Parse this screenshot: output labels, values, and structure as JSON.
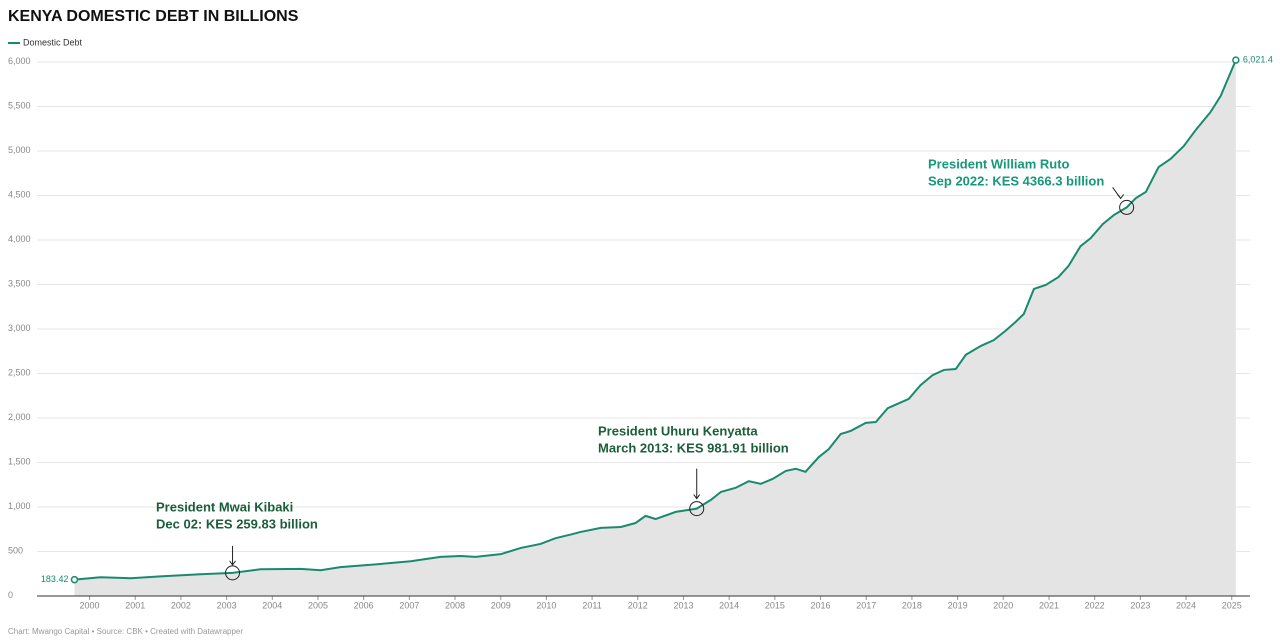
{
  "chart_data": {
    "type": "area",
    "title": "KENYA DOMESTIC DEBT IN BILLIONS",
    "source": "Chart: Mwango Capital • Source: CBK • Created with Datawrapper",
    "legend": "top-left",
    "grid": true,
    "series": [
      {
        "name": "Domestic Debt",
        "color": "#1a8a6e",
        "x": [
          1999.67,
          2000.24,
          2000.9,
          2001.55,
          2002.43,
          2003.13,
          2003.74,
          2004.62,
          2005.06,
          2005.49,
          2006.37,
          2007.03,
          2007.68,
          2008.12,
          2008.45,
          2009.0,
          2009.44,
          2009.87,
          2010.2,
          2010.53,
          2010.75,
          2011.19,
          2011.63,
          2011.95,
          2012.17,
          2012.39,
          2012.83,
          2013.29,
          2013.6,
          2013.82,
          2014.14,
          2014.43,
          2014.69,
          2014.95,
          2015.24,
          2015.46,
          2015.67,
          2015.96,
          2016.18,
          2016.44,
          2016.66,
          2016.99,
          2017.21,
          2017.47,
          2017.93,
          2018.19,
          2018.45,
          2018.7,
          2018.96,
          2019.18,
          2019.51,
          2019.79,
          2020.05,
          2020.27,
          2020.45,
          2020.67,
          2020.93,
          2021.21,
          2021.43,
          2021.69,
          2021.91,
          2022.18,
          2022.42,
          2022.7,
          2022.9,
          2023.12,
          2023.4,
          2023.66,
          2023.95,
          2024.21,
          2024.54,
          2024.76,
          2025.09
        ],
        "values": [
          183.42,
          210,
          200,
          220,
          245,
          259.83,
          300,
          305,
          290,
          325,
          360,
          390,
          440,
          450,
          440,
          470,
          540,
          585,
          650,
          690,
          720,
          765,
          775,
          820,
          900,
          865,
          945,
          981.91,
          1080,
          1170,
          1215,
          1290,
          1260,
          1315,
          1405,
          1430,
          1395,
          1560,
          1650,
          1820,
          1855,
          1945,
          1955,
          2110,
          2215,
          2370,
          2480,
          2540,
          2550,
          2710,
          2810,
          2875,
          2980,
          3080,
          3170,
          3450,
          3495,
          3585,
          3710,
          3930,
          4020,
          4180,
          4280,
          4366.3,
          4470,
          4540,
          4820,
          4910,
          5055,
          5235,
          5440,
          5620,
          6021.4
        ],
        "value_labels": [
          "183.42",
          null,
          null,
          null,
          null,
          null,
          null,
          null,
          null,
          null,
          null,
          null,
          null,
          null,
          null,
          null,
          null,
          null,
          null,
          null,
          null,
          null,
          null,
          null,
          null,
          null,
          null,
          null,
          null,
          null,
          null,
          null,
          null,
          null,
          null,
          null,
          null,
          null,
          null,
          null,
          null,
          null,
          null,
          null,
          null,
          null,
          null,
          null,
          null,
          null,
          null,
          null,
          null,
          null,
          null,
          null,
          null,
          null,
          null,
          null,
          null,
          null,
          null,
          null,
          null,
          null,
          null,
          null,
          null,
          null,
          null,
          null,
          "6,021.4"
        ]
      }
    ],
    "xlim": [
      1998.85,
      2025.4
    ],
    "xticks": [
      2000,
      2001,
      2002,
      2003,
      2004,
      2005,
      2006,
      2007,
      2008,
      2009,
      2010,
      2011,
      2012,
      2013,
      2014,
      2015,
      2016,
      2017,
      2018,
      2019,
      2020,
      2021,
      2022,
      2023,
      2024,
      2025
    ],
    "ylim": [
      0,
      6000
    ],
    "yticks": [
      0,
      500,
      {
        "value": 1000,
        "label": "1,000"
      },
      {
        "value": 1500,
        "label": "1,500"
      },
      {
        "value": 2000,
        "label": "2,000"
      },
      {
        "value": 2500,
        "label": "2,500"
      },
      {
        "value": 3000,
        "label": "3,000"
      },
      {
        "value": 3500,
        "label": "3,500"
      },
      {
        "value": 4000,
        "label": "4,000"
      },
      {
        "value": 4500,
        "label": "4,500"
      },
      {
        "value": 5000,
        "label": "5,000"
      },
      {
        "value": 5500,
        "label": "5,500"
      },
      {
        "value": 6000,
        "label": "6,000"
      }
    ],
    "annotations": [
      {
        "x": 2003.13,
        "value": 259.83,
        "color": "#1b5e3b",
        "text": [
          "President Mwai Kibaki",
          "Dec 02: KES 259.83 billion"
        ]
      },
      {
        "x": 2013.29,
        "value": 981.91,
        "color": "#1b5e3b",
        "text": [
          "President Uhuru Kenyatta",
          "March 2013: KES 981.91 billion"
        ]
      },
      {
        "x": 2022.7,
        "value": 4366.3,
        "color": "#17987a",
        "text": [
          "President William Ruto",
          "Sep 2022: KES 4366.3 billion"
        ]
      }
    ]
  }
}
